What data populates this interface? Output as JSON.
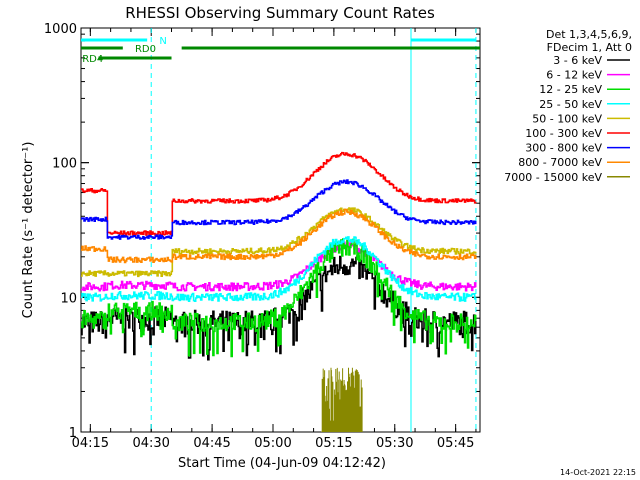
{
  "chart_data": {
    "type": "line",
    "title": "RHESSI Observing Summary Count Rates",
    "xlabel": "Start Time (04-Jun-09 04:12:42)",
    "ylabel": "Count Rate (s⁻¹ detector⁻¹)",
    "yscale": "log",
    "ylim": [
      1,
      1000
    ],
    "xlim": [
      "04:12:42",
      "05:51:00"
    ],
    "xticks": [
      "04:15",
      "04:30",
      "04:45",
      "05:00",
      "05:15",
      "05:30",
      "05:45"
    ],
    "yticks": [
      "1",
      "10",
      "100",
      "1000"
    ],
    "legend_header": [
      "Det 1,3,4,5,6,9,",
      "FDecim 1, Att 0"
    ],
    "legend_position": "outside-right",
    "series": [
      {
        "name": "3 - 6 keV",
        "color": "#000000",
        "low": 6.5,
        "peak": 15.5,
        "seg": [
          [
            4.25,
            0
          ],
          [
            4.5,
            0.4
          ],
          [
            5.15,
            2
          ]
        ],
        "noise": 0.09,
        "dropout": true
      },
      {
        "name": "6 - 12 keV",
        "color": "#ff00ff",
        "low": 12,
        "peak": 23,
        "seg": [
          [
            4.25,
            0
          ],
          [
            4.5,
            0.3
          ],
          [
            5.15,
            1
          ]
        ],
        "noise": 0.03
      },
      {
        "name": "12 - 25 keV",
        "color": "#00dd00",
        "low": 6.5,
        "peak": 20,
        "seg": [
          [
            4.25,
            0.3
          ],
          [
            4.5,
            1.4
          ],
          [
            5.15,
            3.5
          ]
        ],
        "noise": 0.07,
        "dropout": true
      },
      {
        "name": "25 - 50 keV",
        "color": "#00ffff",
        "low": 10,
        "peak": 26,
        "seg": [
          [
            4.25,
            0
          ],
          [
            4.5,
            0.3
          ],
          [
            5.15,
            1
          ]
        ],
        "noise": 0.03
      },
      {
        "name": "50 - 100 keV",
        "color": "#ccbb00",
        "low": 22,
        "peak": 45,
        "seg": [
          [
            4.25,
            -7
          ],
          [
            4.5,
            -7
          ],
          [
            5.15,
            0
          ]
        ],
        "noise": 0.02
      },
      {
        "name": "100 - 300 keV",
        "color": "#ff0000",
        "low": 52,
        "peak": 116,
        "seg": [
          [
            4.25,
            10
          ],
          [
            4.5,
            -22
          ],
          [
            5.15,
            0
          ]
        ],
        "noise": 0.015
      },
      {
        "name": "300 - 800 keV",
        "color": "#0000ff",
        "low": 36,
        "peak": 72,
        "seg": [
          [
            4.25,
            2
          ],
          [
            4.5,
            -8
          ],
          [
            5.15,
            0
          ]
        ],
        "noise": 0.015
      },
      {
        "name": "800 - 7000 keV",
        "color": "#ff8800",
        "low": 20,
        "peak": 43,
        "seg": [
          [
            4.25,
            3
          ],
          [
            4.5,
            -1
          ],
          [
            5.15,
            0
          ]
        ],
        "noise": 0.02
      },
      {
        "name": "7000 - 15000 keV",
        "color": "#888800",
        "burst": true,
        "burst_range": [
          "05:12",
          "05:22"
        ],
        "burst_max": 3
      }
    ],
    "flare_peak_time": "05:18",
    "flags": [
      {
        "label": "RD0",
        "color": "#008800",
        "row": 1,
        "spans": [
          [
            "04:12:42",
            "04:23:00"
          ],
          [
            "04:37:30",
            "05:51:00"
          ]
        ],
        "label_at": "04:26"
      },
      {
        "label": "RD4",
        "color": "#008800",
        "row": 2,
        "spans": [
          [
            "04:17:00",
            "04:35:00"
          ]
        ],
        "label_at": "04:13"
      },
      {
        "label": "N",
        "color": "#00ffff",
        "row": 0,
        "spans": [
          [
            "04:12:42",
            "04:29:00"
          ],
          [
            "05:34:00",
            "05:50:00"
          ]
        ],
        "label_at": "04:32"
      }
    ],
    "vlines": [
      {
        "time": "04:30",
        "style": "dashed",
        "color": "#00ffff"
      },
      {
        "time": "05:34",
        "style": "solid",
        "color": "#00ffff"
      },
      {
        "time": "05:50",
        "style": "dashed",
        "color": "#00ffff"
      }
    ],
    "timestamp": "14-Oct-2021 22:15"
  }
}
